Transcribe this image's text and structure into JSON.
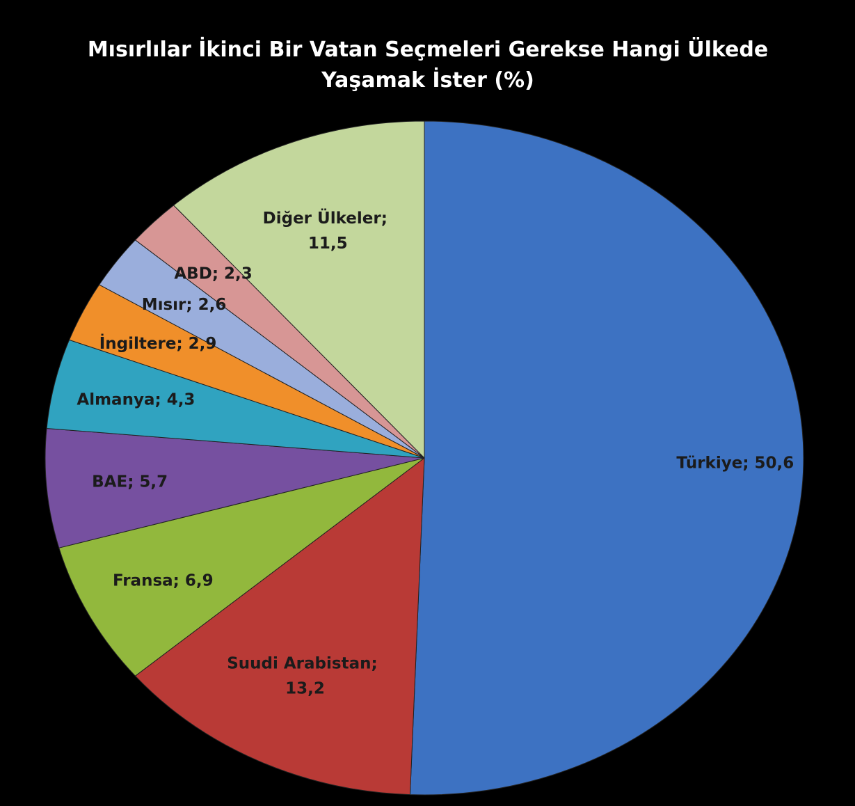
{
  "chart_data": {
    "type": "pie",
    "title": "Mısırlılar İkinci Bir Vatan Seçmeleri Gerekse Hangi Ülkede Yaşamak İster (%)",
    "categories": [
      "Türkiye",
      "Suudi Arabistan",
      "Fransa",
      "BAE",
      "Almanya",
      "İngiltere",
      "Mısır",
      "ABD",
      "Diğer Ülkeler"
    ],
    "values": [
      50.6,
      13.2,
      6.9,
      5.7,
      4.3,
      2.9,
      2.6,
      2.3,
      11.5
    ],
    "value_labels": [
      "50,6",
      "13,2",
      "6,9",
      "5,7",
      "4,3",
      "2,9",
      "2,6",
      "2,3",
      "11,5"
    ],
    "label_separator": "; ",
    "colors": [
      "#3d72c2",
      "#b93a36",
      "#92b83d",
      "#7650a0",
      "#30a3c0",
      "#f08f2a",
      "#9aaedc",
      "#d79695",
      "#c3d79c"
    ]
  }
}
